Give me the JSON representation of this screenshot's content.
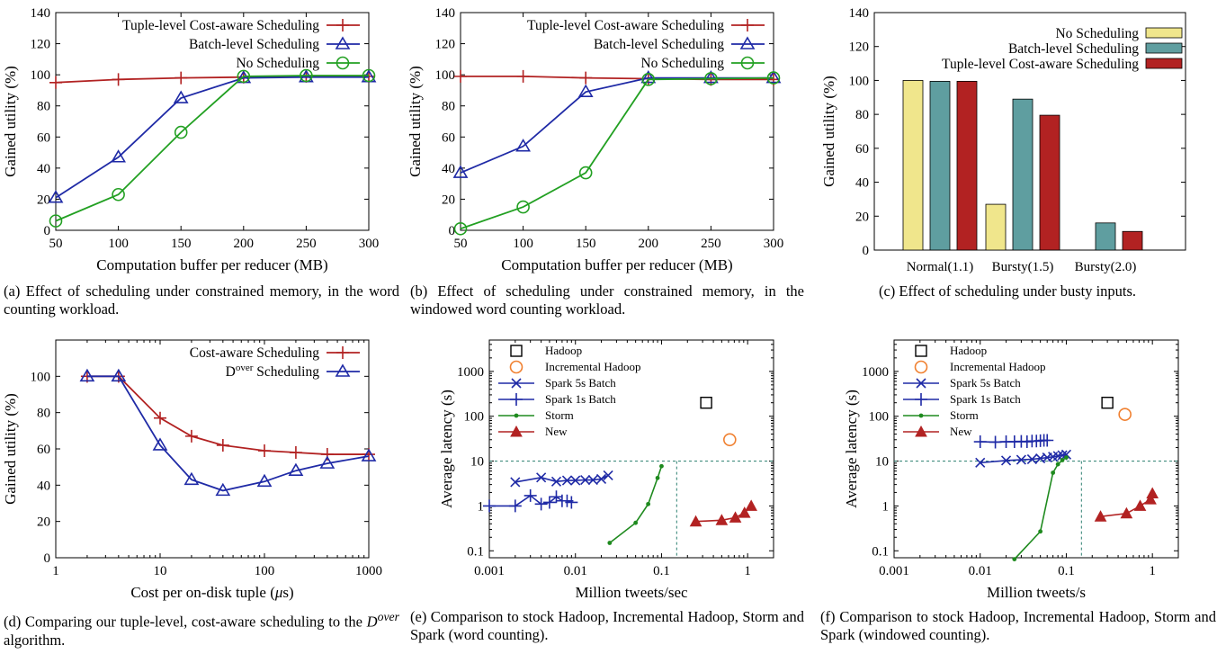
{
  "chart_data": [
    {
      "type": "line",
      "caption": "(a) Effect of scheduling under constrained memory, in the word counting workload.",
      "xlabel": "Computation buffer per reducer (MB)",
      "ylabel": "Gained utility (%)",
      "xlim": [
        50,
        300
      ],
      "ylim": [
        0,
        140
      ],
      "xticks": [
        50,
        100,
        150,
        200,
        250,
        300
      ],
      "yticks": [
        0,
        20,
        40,
        60,
        80,
        100,
        120,
        140
      ],
      "legend_position": "top-right",
      "series": [
        {
          "name": "Tuple-level Cost-aware Scheduling",
          "color": "#b22222",
          "marker": "plus",
          "x": [
            50,
            100,
            150,
            200,
            250,
            300
          ],
          "y": [
            95,
            97,
            98,
            98.5,
            99,
            99
          ]
        },
        {
          "name": "Batch-level Scheduling",
          "color": "#1f2aa6",
          "marker": "triangle",
          "x": [
            50,
            100,
            150,
            200,
            250,
            300
          ],
          "y": [
            21,
            47,
            85,
            98,
            98.5,
            98.5
          ]
        },
        {
          "name": "No Scheduling",
          "color": "#22a022",
          "marker": "circle",
          "x": [
            50,
            100,
            150,
            200,
            250,
            300
          ],
          "y": [
            6,
            23,
            63,
            99,
            99.5,
            99.5
          ]
        }
      ]
    },
    {
      "type": "line",
      "caption": "(b) Effect of scheduling under constrained memory, in the windowed word counting workload.",
      "xlabel": "Computation buffer per reducer (MB)",
      "ylabel": "Gained utility (%)",
      "xlim": [
        50,
        300
      ],
      "ylim": [
        0,
        140
      ],
      "xticks": [
        50,
        100,
        150,
        200,
        250,
        300
      ],
      "yticks": [
        0,
        20,
        40,
        60,
        80,
        100,
        120,
        140
      ],
      "legend_position": "top-right",
      "series": [
        {
          "name": "Tuple-level Cost-aware Scheduling",
          "color": "#b22222",
          "marker": "plus",
          "x": [
            50,
            100,
            150,
            200,
            250,
            300
          ],
          "y": [
            99,
            99,
            98,
            97.5,
            97,
            97
          ]
        },
        {
          "name": "Batch-level Scheduling",
          "color": "#1f2aa6",
          "marker": "triangle",
          "x": [
            50,
            100,
            150,
            200,
            250,
            300
          ],
          "y": [
            37,
            54,
            89,
            98,
            98,
            98
          ]
        },
        {
          "name": "No Scheduling",
          "color": "#22a022",
          "marker": "circle",
          "x": [
            50,
            100,
            150,
            200,
            250,
            300
          ],
          "y": [
            1,
            15,
            37,
            97,
            97.5,
            98
          ]
        }
      ]
    },
    {
      "type": "bar",
      "caption": "(c) Effect of scheduling under busty inputs.",
      "xlabel": "",
      "ylabel": "Gained utility (%)",
      "ylim": [
        0,
        140
      ],
      "yticks": [
        0,
        20,
        40,
        60,
        80,
        100,
        120,
        140
      ],
      "legend_position": "top-right",
      "categories": [
        "Normal(1.1)",
        "Bursty(1.5)",
        "Bursty(2.0)"
      ],
      "series": [
        {
          "name": "No Scheduling",
          "color": "#f0e68c",
          "values": [
            100,
            27,
            0
          ]
        },
        {
          "name": "Batch-level Scheduling",
          "color": "#5f9ea0",
          "values": [
            99.5,
            89,
            16
          ]
        },
        {
          "name": "Tuple-level Cost-aware Scheduling",
          "color": "#b22222",
          "values": [
            99.5,
            79.5,
            11
          ]
        }
      ]
    },
    {
      "type": "line",
      "caption_prefix": "(d) Comparing our tuple-level, cost-aware scheduling to the ",
      "caption_math": "D",
      "caption_sup": "over",
      "caption_suffix": " algorithm.",
      "xlabel_prefix": "Cost per on-disk tuple (",
      "xlabel_mu": "μ",
      "xlabel_suffix": "s)",
      "ylabel": "Gained utility (%)",
      "xscale": "log",
      "xlim": [
        1,
        1000
      ],
      "ylim": [
        0,
        120
      ],
      "xticks": [
        "1",
        "10",
        "100",
        "1000"
      ],
      "yticks": [
        0,
        20,
        40,
        60,
        80,
        100
      ],
      "legend_position": "top-right",
      "series": [
        {
          "name": "Cost-aware Scheduling",
          "color": "#b22222",
          "marker": "plus",
          "x": [
            2,
            4,
            10,
            20,
            40,
            100,
            200,
            400,
            1000
          ],
          "y": [
            100,
            100,
            77,
            67,
            62,
            59,
            58,
            57,
            57
          ]
        },
        {
          "name_main": "D",
          "name_sup": "over",
          "name_rest": " Scheduling",
          "color": "#1f2aa6",
          "marker": "triangle",
          "x": [
            2,
            4,
            10,
            20,
            40,
            100,
            200,
            400,
            1000
          ],
          "y": [
            100,
            100,
            62,
            43,
            37,
            42,
            48,
            52,
            56
          ]
        }
      ]
    },
    {
      "type": "scatter",
      "caption": "(e) Comparison to stock Hadoop, Incremental Hadoop, Storm and Spark (word counting).",
      "xlabel": "Million tweets/sec",
      "ylabel": "Average latency (s)",
      "xscale": "log",
      "yscale": "log",
      "xlim": [
        0.001,
        2
      ],
      "ylim": [
        0.07,
        5000
      ],
      "xticks": [
        "0.001",
        "0.01",
        "0.1",
        "1"
      ],
      "yticks": [
        "0.1",
        "1",
        "10",
        "100",
        "1000"
      ],
      "reference_lines": {
        "y": 10,
        "x": 0.15
      },
      "legend_position": "top-left",
      "series": [
        {
          "name": "Hadoop",
          "color": "#000000",
          "marker": "square",
          "x": [
            0.33
          ],
          "y": [
            200
          ]
        },
        {
          "name": "Incremental Hadoop",
          "color": "#f08030",
          "marker": "circle",
          "x": [
            0.62
          ],
          "y": [
            30
          ]
        },
        {
          "name": "Spark 5s Batch",
          "color": "#1f2aa6",
          "marker": "x",
          "x": [
            0.002,
            0.004,
            0.006,
            0.008,
            0.01,
            0.013,
            0.016,
            0.02,
            0.024
          ],
          "y": [
            3.4,
            4.3,
            3.5,
            3.7,
            3.7,
            3.8,
            3.8,
            4.0,
            4.8
          ]
        },
        {
          "name": "Spark 1s Batch",
          "color": "#1f2aa6",
          "marker": "plus",
          "x": [
            0.001,
            0.002,
            0.003,
            0.004,
            0.005,
            0.006,
            0.007,
            0.008,
            0.009
          ],
          "y": [
            1.0,
            1.0,
            1.7,
            1.1,
            1.2,
            1.6,
            1.3,
            1.3,
            1.2
          ]
        },
        {
          "name": "Storm",
          "color": "#1e8a1e",
          "marker": "dot",
          "x": [
            0.025,
            0.05,
            0.07,
            0.09,
            0.1
          ],
          "y": [
            0.15,
            0.42,
            1.1,
            4.2,
            7.7
          ]
        },
        {
          "name": "New",
          "color": "#b22222",
          "marker": "triangle-filled",
          "x": [
            0.25,
            0.5,
            0.72,
            0.92,
            1.1
          ],
          "y": [
            0.45,
            0.48,
            0.55,
            0.7,
            1.0
          ]
        }
      ]
    },
    {
      "type": "scatter",
      "caption": "(f) Comparison to stock Hadoop, Incremental Hadoop, Storm and Spark (windowed counting).",
      "xlabel": "Million tweets/s",
      "ylabel": "Average latency (s)",
      "xscale": "log",
      "yscale": "log",
      "xlim": [
        0.001,
        2
      ],
      "ylim": [
        0.07,
        5000
      ],
      "xticks": [
        "0.001",
        "0.01",
        "0.1",
        "1"
      ],
      "yticks": [
        "0.1",
        "1",
        "10",
        "100",
        "1000"
      ],
      "reference_lines": {
        "y": 10,
        "x": 0.15
      },
      "legend_position": "top-left",
      "series": [
        {
          "name": "Hadoop",
          "color": "#000000",
          "marker": "square",
          "x": [
            0.3
          ],
          "y": [
            200
          ]
        },
        {
          "name": "Incremental Hadoop",
          "color": "#f08030",
          "marker": "circle",
          "x": [
            0.48
          ],
          "y": [
            110
          ]
        },
        {
          "name": "Spark 5s Batch",
          "color": "#1f2aa6",
          "marker": "x",
          "x": [
            0.01,
            0.02,
            0.03,
            0.04,
            0.05,
            0.06,
            0.07,
            0.08,
            0.09,
            0.1
          ],
          "y": [
            9.2,
            10.3,
            10.7,
            11.0,
            11.5,
            12.0,
            12.5,
            13.0,
            13.5,
            14.0
          ]
        },
        {
          "name": "Spark 1s Batch",
          "color": "#1f2aa6",
          "marker": "plus",
          "x": [
            0.01,
            0.015,
            0.02,
            0.025,
            0.03,
            0.035,
            0.04,
            0.045,
            0.05,
            0.055,
            0.06
          ],
          "y": [
            27,
            26.5,
            27,
            27,
            27.5,
            27,
            28,
            28,
            28.5,
            29,
            29
          ]
        },
        {
          "name": "Storm",
          "color": "#1e8a1e",
          "marker": "dot",
          "x": [
            0.025,
            0.05,
            0.07,
            0.08,
            0.09,
            0.1
          ],
          "y": [
            0.065,
            0.27,
            5.5,
            8.5,
            10.5,
            12
          ]
        },
        {
          "name": "New",
          "color": "#b22222",
          "marker": "triangle-filled",
          "x": [
            0.25,
            0.5,
            0.72,
            0.95,
            1.0
          ],
          "y": [
            0.58,
            0.68,
            1.0,
            1.4,
            1.9
          ]
        }
      ]
    }
  ]
}
